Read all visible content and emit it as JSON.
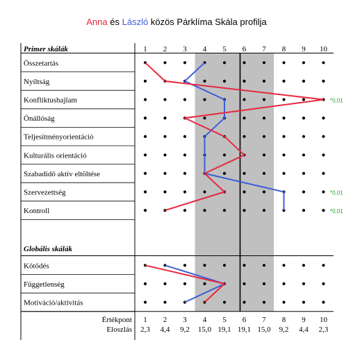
{
  "title": {
    "name1": "Anna",
    "connector": "és",
    "name2": "László",
    "rest": "közös Párklíma Skála profilja"
  },
  "colors": {
    "anna": "#e8283c",
    "laszlo": "#3a5fd8",
    "significance": "#2ca02c",
    "shade": "#c0c0c0",
    "grid": "#000000"
  },
  "chart_data": {
    "type": "line",
    "x_scale": [
      1,
      2,
      3,
      4,
      5,
      6,
      7,
      8,
      9,
      10
    ],
    "shaded_range": [
      4,
      7
    ],
    "mean_line": 6,
    "sections": [
      {
        "header": "Primer skálák",
        "scales": [
          {
            "label": "Összetartás",
            "anna": 1,
            "laszlo": 4,
            "sig": ""
          },
          {
            "label": "Nyíltság",
            "anna": 2,
            "laszlo": 3,
            "sig": ""
          },
          {
            "label": "Konfliktushajlam",
            "anna": 10,
            "laszlo": 5,
            "sig": "*0,01"
          },
          {
            "label": "Önállóság",
            "anna": 3,
            "laszlo": 5,
            "sig": ""
          },
          {
            "label": "Teljesítményorientáció",
            "anna": 5,
            "laszlo": 4,
            "sig": ""
          },
          {
            "label": "Kulturális orientáció",
            "anna": 6,
            "laszlo": 4,
            "sig": ""
          },
          {
            "label": "Szabadidő aktív eltöltése",
            "anna": 4,
            "laszlo": 4,
            "sig": ""
          },
          {
            "label": "Szervezettség",
            "anna": 5,
            "laszlo": 8,
            "sig": "*0,01"
          },
          {
            "label": "Kontroll",
            "anna": 2,
            "laszlo": 8,
            "sig": "*0,01"
          }
        ]
      },
      {
        "header": "Globális skálák",
        "scales": [
          {
            "label": "Kötődés",
            "anna": 1,
            "laszlo": 2,
            "sig": ""
          },
          {
            "label": "Függetlenség",
            "anna": 5,
            "laszlo": 5,
            "sig": ""
          },
          {
            "label": "Motiváció/aktivitás",
            "anna": 4,
            "laszlo": 3,
            "sig": ""
          }
        ]
      }
    ],
    "footer": {
      "ertekpont_label": "Értékpont",
      "ertekpont_values": [
        "1",
        "2",
        "3",
        "4",
        "5",
        "6",
        "7",
        "8",
        "9",
        "10"
      ],
      "eloszlas_label": "Eloszlás",
      "eloszlas_values": [
        "2,3",
        "4,4",
        "9,2",
        "15,0",
        "19,1",
        "19,1",
        "15,0",
        "9,2",
        "4,4",
        "2,3"
      ]
    }
  }
}
